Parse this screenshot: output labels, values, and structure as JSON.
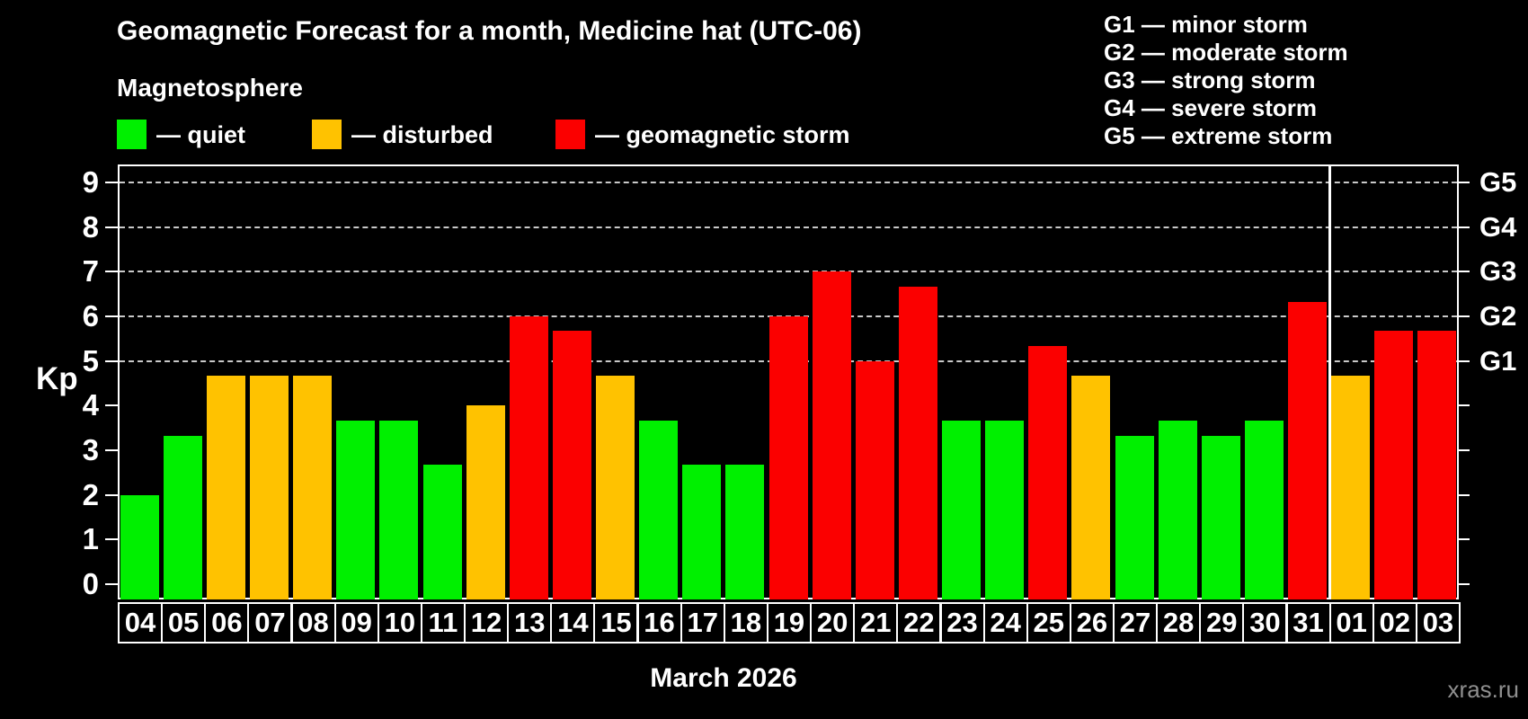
{
  "title": "Geomagnetic Forecast for a month, Medicine hat (UTC-06)",
  "subtitle": "Magnetosphere",
  "status_legend": [
    {
      "key": "quiet",
      "label": "— quiet",
      "color": "#00f000"
    },
    {
      "key": "disturbed",
      "label": "— disturbed",
      "color": "#ffc200"
    },
    {
      "key": "storm",
      "label": "— geomagnetic storm",
      "color": "#fb0000"
    }
  ],
  "g_scale_legend": [
    "G1 — minor storm",
    "G2 — moderate storm",
    "G3 — strong storm",
    "G4 — severe storm",
    "G5 — extreme storm"
  ],
  "axis": {
    "y_label": "Kp",
    "y_ticks": [
      0,
      1,
      2,
      3,
      4,
      5,
      6,
      7,
      8,
      9
    ],
    "right_ticks": [
      {
        "label": "G1",
        "kp": 5
      },
      {
        "label": "G2",
        "kp": 6
      },
      {
        "label": "G3",
        "kp": 7
      },
      {
        "label": "G4",
        "kp": 8
      },
      {
        "label": "G5",
        "kp": 9
      }
    ],
    "gridlines_kp": [
      5,
      6,
      7,
      8,
      9
    ]
  },
  "x_axis_label": "March 2026",
  "watermark": "xras.ru",
  "chart_data": {
    "type": "bar",
    "title": "Geomagnetic Forecast for a month, Medicine hat (UTC-06)",
    "xlabel": "March 2026",
    "ylabel": "Kp",
    "ylim": [
      0,
      9
    ],
    "grid": "horizontal dashed lines at Kp 5,6,7,8,9",
    "legend_position": "top-left",
    "categories": [
      "04",
      "05",
      "06",
      "07",
      "08",
      "09",
      "10",
      "11",
      "12",
      "13",
      "14",
      "15",
      "16",
      "17",
      "18",
      "19",
      "20",
      "21",
      "22",
      "23",
      "24",
      "25",
      "26",
      "27",
      "28",
      "29",
      "30",
      "31",
      "01",
      "02",
      "03"
    ],
    "values": [
      2,
      3.33,
      4.67,
      4.67,
      4.67,
      3.67,
      3.67,
      2.67,
      4,
      6,
      5.67,
      4.67,
      3.67,
      2.67,
      2.67,
      6,
      7,
      5,
      6.67,
      3.67,
      3.67,
      5.33,
      4.67,
      3.33,
      3.67,
      3.33,
      3.67,
      6.33,
      4.67,
      5.67,
      5.67
    ],
    "statuses": [
      "quiet",
      "quiet",
      "disturbed",
      "disturbed",
      "disturbed",
      "quiet",
      "quiet",
      "quiet",
      "disturbed",
      "storm",
      "storm",
      "disturbed",
      "quiet",
      "quiet",
      "quiet",
      "storm",
      "storm",
      "storm",
      "storm",
      "quiet",
      "quiet",
      "storm",
      "disturbed",
      "quiet",
      "quiet",
      "quiet",
      "quiet",
      "storm",
      "disturbed",
      "storm",
      "storm"
    ],
    "colors": {
      "quiet": "#00f000",
      "disturbed": "#ffc200",
      "storm": "#fb0000"
    },
    "month_separator_after_index": 27
  }
}
